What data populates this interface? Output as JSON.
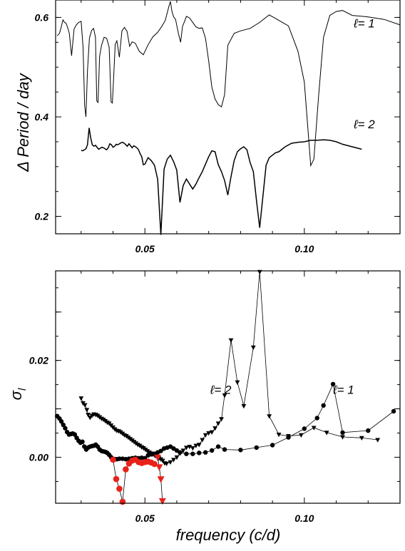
{
  "chart_data": [
    {
      "id": "top",
      "type": "line",
      "ylabel": "Δ Period / day",
      "xlim": [
        0.022,
        0.13
      ],
      "ylim": [
        0.165,
        0.635
      ],
      "xticks": [
        0.05,
        0.1
      ],
      "xtick_labels": [
        "0.05",
        "0.10"
      ],
      "yticks": [
        0.2,
        0.4,
        0.6
      ],
      "ytick_labels": [
        "0.2",
        "0.4",
        "0.6"
      ],
      "annotations": [
        {
          "text": "ℓ= 1",
          "x": 0.1155,
          "y": 0.58
        },
        {
          "text": "ℓ= 2",
          "x": 0.1155,
          "y": 0.377
        }
      ],
      "series": [
        {
          "id": "l1",
          "color": "#000000",
          "width": 1.0,
          "x": [
            0.0225,
            0.0232,
            0.0238,
            0.0243,
            0.0248,
            0.0253,
            0.0258,
            0.0263,
            0.027,
            0.0278,
            0.0285,
            0.0292,
            0.03,
            0.0306,
            0.0311,
            0.0315,
            0.032,
            0.0326,
            0.0333,
            0.0339,
            0.0345,
            0.0349,
            0.0353,
            0.0358,
            0.0364,
            0.0372,
            0.038,
            0.0388,
            0.0394,
            0.0398,
            0.0402,
            0.0407,
            0.0412,
            0.042,
            0.0428,
            0.0436,
            0.0444,
            0.0452,
            0.046,
            0.047,
            0.0482,
            0.0495,
            0.051,
            0.0525,
            0.054,
            0.0552,
            0.0564,
            0.0575,
            0.058,
            0.0585,
            0.059,
            0.0596,
            0.0605,
            0.0612,
            0.0618,
            0.0625,
            0.063,
            0.064,
            0.065,
            0.066,
            0.067,
            0.068,
            0.069,
            0.07,
            0.071,
            0.072,
            0.073,
            0.074,
            0.075,
            0.076,
            0.078,
            0.08,
            0.083,
            0.086,
            0.089,
            0.092,
            0.095,
            0.098,
            0.1,
            0.102,
            0.103,
            0.1045,
            0.106,
            0.108,
            0.11,
            0.112,
            0.115,
            0.12,
            0.125,
            0.13
          ],
          "y": [
            0.563,
            0.568,
            0.582,
            0.595,
            0.59,
            0.588,
            0.579,
            0.568,
            0.523,
            0.577,
            0.585,
            0.59,
            0.592,
            0.54,
            0.423,
            0.4,
            0.493,
            0.558,
            0.574,
            0.578,
            0.56,
            0.432,
            0.429,
            0.522,
            0.544,
            0.56,
            0.558,
            0.54,
            0.43,
            0.428,
            0.48,
            0.546,
            0.553,
            0.52,
            0.573,
            0.58,
            0.572,
            0.542,
            0.551,
            0.548,
            0.532,
            0.525,
            0.545,
            0.561,
            0.57,
            0.581,
            0.594,
            0.622,
            0.632,
            0.612,
            0.601,
            0.596,
            0.568,
            0.55,
            0.582,
            0.593,
            0.602,
            0.599,
            0.59,
            0.581,
            0.578,
            0.579,
            0.558,
            0.512,
            0.46,
            0.436,
            0.425,
            0.42,
            0.445,
            0.544,
            0.568,
            0.573,
            0.578,
            0.59,
            0.605,
            0.594,
            0.583,
            0.532,
            0.47,
            0.302,
            0.315,
            0.445,
            0.56,
            0.604,
            0.612,
            0.614,
            0.604,
            0.601,
            0.596,
            0.585
          ]
        },
        {
          "id": "l2",
          "color": "#000000",
          "width": 1.5,
          "x": [
            0.03,
            0.0305,
            0.031,
            0.0315,
            0.032,
            0.0325,
            0.033,
            0.0335,
            0.034,
            0.0345,
            0.035,
            0.0355,
            0.036,
            0.0365,
            0.037,
            0.0375,
            0.038,
            0.0385,
            0.039,
            0.0395,
            0.04,
            0.0405,
            0.041,
            0.0415,
            0.042,
            0.0425,
            0.043,
            0.0435,
            0.044,
            0.0445,
            0.045,
            0.0455,
            0.046,
            0.0465,
            0.047,
            0.0475,
            0.048,
            0.0485,
            0.049,
            0.0495,
            0.05,
            0.051,
            0.052,
            0.053,
            0.054,
            0.055,
            0.056,
            0.057,
            0.058,
            0.059,
            0.06,
            0.061,
            0.062,
            0.063,
            0.064,
            0.065,
            0.066,
            0.067,
            0.068,
            0.069,
            0.07,
            0.071,
            0.072,
            0.073,
            0.074,
            0.075,
            0.076,
            0.077,
            0.078,
            0.079,
            0.08,
            0.081,
            0.082,
            0.083,
            0.084,
            0.085,
            0.086,
            0.087,
            0.088,
            0.089,
            0.09,
            0.091,
            0.092,
            0.094,
            0.096,
            0.098,
            0.1,
            0.102,
            0.104,
            0.106,
            0.108,
            0.11,
            0.112,
            0.115,
            0.118
          ],
          "y": [
            0.333,
            0.332,
            0.334,
            0.336,
            0.344,
            0.378,
            0.358,
            0.344,
            0.341,
            0.343,
            0.339,
            0.335,
            0.337,
            0.339,
            0.338,
            0.336,
            0.334,
            0.338,
            0.346,
            0.344,
            0.339,
            0.341,
            0.345,
            0.344,
            0.346,
            0.348,
            0.349,
            0.347,
            0.344,
            0.341,
            0.346,
            0.342,
            0.338,
            0.342,
            0.34,
            0.338,
            0.334,
            0.326,
            0.32,
            0.304,
            0.305,
            0.318,
            0.312,
            0.303,
            0.275,
            0.163,
            0.295,
            0.315,
            0.323,
            0.31,
            0.293,
            0.228,
            0.262,
            0.275,
            0.265,
            0.255,
            0.265,
            0.278,
            0.29,
            0.305,
            0.32,
            0.332,
            0.33,
            0.304,
            0.29,
            0.272,
            0.243,
            0.28,
            0.312,
            0.33,
            0.336,
            0.34,
            0.334,
            0.308,
            0.29,
            0.232,
            0.177,
            0.24,
            0.303,
            0.318,
            0.323,
            0.328,
            0.33,
            0.34,
            0.347,
            0.349,
            0.35,
            0.353,
            0.353,
            0.354,
            0.353,
            0.35,
            0.345,
            0.34,
            0.335
          ]
        }
      ]
    },
    {
      "id": "bottom",
      "type": "line",
      "xlabel": "frequency (c/d)",
      "ylabel": "σ_l",
      "xlim": [
        0.022,
        0.13
      ],
      "ylim": [
        -0.0095,
        0.0385
      ],
      "xticks": [
        0.05,
        0.1
      ],
      "xtick_labels": [
        "0.05",
        "0.10"
      ],
      "yticks": [
        0.0,
        0.01,
        0.02,
        0.03
      ],
      "ytick_labels": [
        "0.00",
        "",
        "0.02",
        ""
      ],
      "annotations": [
        {
          "text": "ℓ= 2",
          "x": 0.0705,
          "y": 0.0131
        },
        {
          "text": "ℓ= 1",
          "x": 0.109,
          "y": 0.0131
        }
      ],
      "series": [
        {
          "id": "l1",
          "color": "#000000",
          "marker": "circle",
          "marker_size": 3.2,
          "x": [
            0.0225,
            0.0232,
            0.0238,
            0.0244,
            0.025,
            0.0256,
            0.0262,
            0.0268,
            0.0274,
            0.028,
            0.0286,
            0.0292,
            0.0298,
            0.0304,
            0.031,
            0.0316,
            0.0322,
            0.0328,
            0.0334,
            0.034,
            0.0346,
            0.0352,
            0.0358,
            0.0364,
            0.037,
            0.0376,
            0.0382,
            0.0388,
            0.0394,
            0.04,
            0.0406,
            0.0412,
            0.042,
            0.043,
            0.044,
            0.045,
            0.046,
            0.047,
            0.048,
            0.049,
            0.05,
            0.051,
            0.052,
            0.053,
            0.054,
            0.055,
            0.056,
            0.057,
            0.058,
            0.059,
            0.06,
            0.061,
            0.063,
            0.065,
            0.067,
            0.069,
            0.071,
            0.073,
            0.075,
            0.08,
            0.085,
            0.09,
            0.095,
            0.1,
            0.104,
            0.106,
            0.109,
            0.112,
            0.12,
            0.128
          ],
          "y": [
            0.0085,
            0.008,
            0.0074,
            0.0067,
            0.006,
            0.0052,
            0.0047,
            0.0048,
            0.0049,
            0.0047,
            0.004,
            0.0034,
            0.003,
            0.0032,
            0.0022,
            0.0016,
            0.002,
            0.0022,
            0.0023,
            0.0024,
            0.0026,
            0.0022,
            0.0016,
            0.0013,
            0.0012,
            0.0011,
            0.0009,
            0.0005,
            0.0,
            -0.0003,
            -0.0004,
            -0.0004,
            -0.0003,
            -0.0003,
            -0.0004,
            -0.0003,
            -0.0002,
            -0.0001,
            -0.0002,
            -0.0001,
            -0.0002,
            0.0004,
            0.0006,
            0.0007,
            0.001,
            0.0013,
            0.0018,
            0.002,
            0.0022,
            0.0018,
            0.0014,
            0.001,
            0.0007,
            0.0007,
            0.0009,
            0.001,
            0.0014,
            0.0022,
            0.0016,
            0.0015,
            0.002,
            0.0025,
            0.0041,
            0.0059,
            0.0081,
            0.0107,
            0.0151,
            0.0051,
            0.0055,
            0.0095
          ]
        },
        {
          "id": "l2",
          "color": "#000000",
          "marker": "triangle-down",
          "marker_size": 3.4,
          "x": [
            0.03,
            0.0306,
            0.0312,
            0.0318,
            0.0322,
            0.0328,
            0.0334,
            0.034,
            0.0346,
            0.0352,
            0.0358,
            0.0364,
            0.037,
            0.0376,
            0.0382,
            0.0388,
            0.0394,
            0.04,
            0.0406,
            0.0412,
            0.0418,
            0.0424,
            0.043,
            0.0436,
            0.0442,
            0.0448,
            0.0454,
            0.046,
            0.0466,
            0.0472,
            0.0478,
            0.0484,
            0.049,
            0.0496,
            0.0502,
            0.0508,
            0.0514,
            0.052,
            0.0526,
            0.0532,
            0.0538,
            0.0544,
            0.055,
            0.0556,
            0.0562,
            0.0568,
            0.058,
            0.059,
            0.06,
            0.061,
            0.062,
            0.063,
            0.064,
            0.065,
            0.066,
            0.067,
            0.068,
            0.069,
            0.07,
            0.071,
            0.072,
            0.073,
            0.074,
            0.075,
            0.077,
            0.079,
            0.081,
            0.084,
            0.086,
            0.089,
            0.092,
            0.095,
            0.099,
            0.103,
            0.107,
            0.112,
            0.118,
            0.123
          ],
          "y": [
            0.0122,
            0.0112,
            0.0108,
            0.0098,
            0.0088,
            0.0082,
            0.0086,
            0.0089,
            0.0088,
            0.0086,
            0.0083,
            0.008,
            0.0078,
            0.0075,
            0.0072,
            0.007,
            0.0066,
            0.0062,
            0.0058,
            0.0055,
            0.0054,
            0.0052,
            0.0049,
            0.0046,
            0.0044,
            0.0041,
            0.0038,
            0.0035,
            0.0032,
            0.0029,
            0.0026,
            0.0024,
            0.0021,
            0.0019,
            0.0016,
            0.0013,
            0.001,
            0.0008,
            0.0006,
            0.0003,
            0.0001,
            -0.0002,
            -0.0004,
            -0.0007,
            -0.0012,
            -0.0013,
            -0.001,
            -0.0005,
            0.0,
            0.0008,
            0.0014,
            0.002,
            0.0022,
            0.0019,
            0.0024,
            0.0026,
            0.0036,
            0.0046,
            0.005,
            0.0052,
            0.006,
            0.007,
            0.0079,
            0.0128,
            0.0242,
            0.0155,
            0.0106,
            0.0227,
            0.0383,
            0.0085,
            0.0047,
            0.0044,
            0.0046,
            0.0061,
            0.0051,
            0.0042,
            0.004,
            0.0036
          ]
        },
        {
          "id": "red",
          "color": "#e8211a",
          "marker": "circle",
          "marker_size": 4.3,
          "x": [
            0.04,
            0.041,
            0.042,
            0.043,
            0.044,
            0.045,
            0.046,
            0.047,
            0.048,
            0.049,
            0.05,
            0.051,
            0.052,
            0.053
          ],
          "y": [
            -0.0005,
            -0.0045,
            -0.0065,
            -0.0092,
            -0.0025,
            -0.0013,
            -0.0007,
            -0.0005,
            -0.001,
            -0.0012,
            -0.001,
            -0.0009,
            -0.0011,
            -0.0014
          ]
        },
        {
          "id": "red-tri",
          "color": "#e8211a",
          "marker": "triangle-down",
          "marker_size": 5.0,
          "x": [
            0.054,
            0.0545,
            0.055,
            0.0555
          ],
          "y": [
            0.0,
            -0.002,
            -0.0045,
            -0.009
          ]
        }
      ]
    }
  ]
}
